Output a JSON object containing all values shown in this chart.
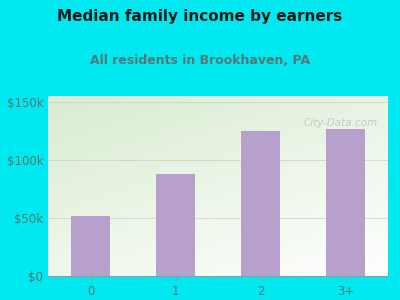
{
  "title": "Median family income by earners",
  "subtitle": "All residents in Brookhaven, PA",
  "categories": [
    "0",
    "1",
    "2",
    "3+"
  ],
  "values": [
    52000,
    88000,
    125000,
    127000
  ],
  "bar_color": "#b8a0cc",
  "background_outer": "#00e8f0",
  "background_inner_topleft": "#d8ecd0",
  "background_inner_bottomright": "#ffffff",
  "title_color": "#1a1a1a",
  "subtitle_color": "#557777",
  "tick_label_color": "#557777",
  "ytick_labels": [
    "$0",
    "$50k",
    "$100k",
    "$150k"
  ],
  "ytick_values": [
    0,
    50000,
    100000,
    150000
  ],
  "ylim": [
    0,
    155000
  ],
  "watermark": "City-Data.com",
  "title_fontsize": 11,
  "subtitle_fontsize": 9
}
